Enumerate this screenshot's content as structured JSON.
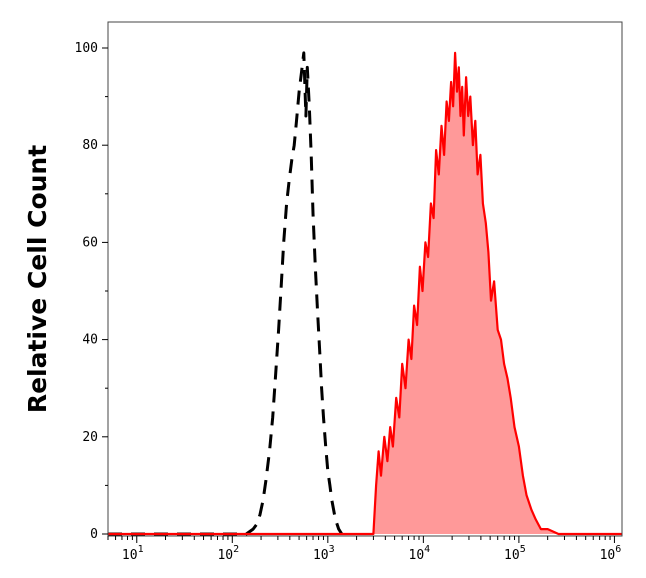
{
  "chart_data": {
    "type": "area",
    "title": "",
    "xlabel": "",
    "ylabel": "Relative Cell Count",
    "xscale": "log",
    "xlim": [
      5,
      1200000
    ],
    "ylim": [
      0,
      100
    ],
    "grid": false,
    "legend": "none",
    "x_ticks": [
      {
        "base": "10",
        "exp": "1",
        "value": 10
      },
      {
        "base": "10",
        "exp": "2",
        "value": 100
      },
      {
        "base": "10",
        "exp": "3",
        "value": 1000
      },
      {
        "base": "10",
        "exp": "4",
        "value": 10000
      },
      {
        "base": "10",
        "exp": "5",
        "value": 100000
      },
      {
        "base": "10",
        "exp": "6",
        "value": 1000000
      }
    ],
    "y_ticks": [
      "0",
      "20",
      "40",
      "60",
      "80",
      "100"
    ],
    "series": [
      {
        "style": "dashed",
        "color": "#000000",
        "x": [
          5,
          140,
          165,
          180,
          195,
          210,
          225,
          245,
          265,
          285,
          305,
          325,
          345,
          370,
          395,
          420,
          445,
          470,
          500,
          530,
          560,
          590,
          610,
          640,
          670,
          700,
          740,
          780,
          820,
          860,
          900,
          950,
          1000,
          1050,
          1100,
          1150,
          1200,
          1250,
          1300,
          1400
        ],
        "y": [
          0,
          0,
          1,
          2,
          4,
          7,
          11,
          17,
          24,
          33,
          42,
          51,
          60,
          68,
          73,
          77,
          80,
          85,
          91,
          95,
          99,
          86,
          96,
          88,
          78,
          66,
          55,
          46,
          38,
          30,
          24,
          18,
          13,
          10,
          7,
          5,
          3,
          2,
          1,
          0
        ]
      },
      {
        "style": "solid-filled",
        "color": "#ff0000",
        "fill": "#ff9999",
        "x": [
          5,
          3000,
          3200,
          3400,
          3600,
          3900,
          4200,
          4500,
          4800,
          5200,
          5600,
          6000,
          6500,
          7000,
          7500,
          8000,
          8600,
          9200,
          9800,
          10500,
          11200,
          12000,
          12800,
          13600,
          14500,
          15500,
          16500,
          17500,
          18500,
          19500,
          20500,
          21500,
          22500,
          23500,
          24500,
          25500,
          26500,
          28000,
          29500,
          31000,
          33000,
          35000,
          37000,
          39500,
          42000,
          45000,
          48000,
          51000,
          55000,
          60000,
          65000,
          70000,
          76000,
          82000,
          90000,
          100000,
          110000,
          120000,
          135000,
          150000,
          170000,
          200000,
          260000,
          1200000
        ],
        "y": [
          0,
          0,
          10,
          17,
          12,
          20,
          15,
          22,
          18,
          28,
          24,
          35,
          30,
          40,
          36,
          47,
          43,
          55,
          50,
          60,
          57,
          68,
          65,
          79,
          74,
          84,
          78,
          89,
          85,
          93,
          88,
          99,
          91,
          96,
          86,
          92,
          82,
          94,
          86,
          90,
          80,
          85,
          74,
          78,
          68,
          64,
          58,
          48,
          52,
          42,
          40,
          35,
          32,
          28,
          22,
          18,
          12,
          8,
          5,
          3,
          1,
          1,
          0,
          0
        ]
      }
    ]
  }
}
